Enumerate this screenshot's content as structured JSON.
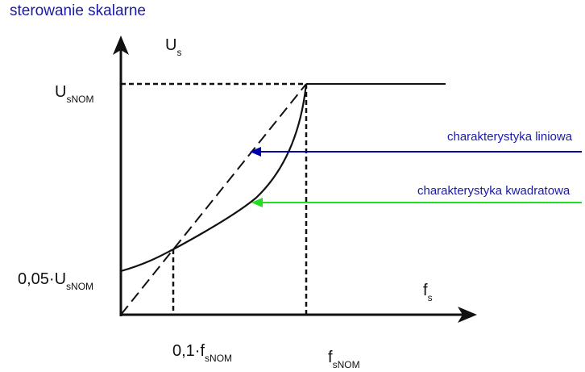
{
  "title": "sterowanie skalarne",
  "axes": {
    "y_label": "U",
    "y_label_sub": "s",
    "x_label": "f",
    "x_label_sub": "s"
  },
  "ticks": {
    "y_top_main": "U",
    "y_top_sub": "sNOM",
    "y_low_main": "0,05·U",
    "y_low_sub": "sNOM",
    "x_low_main": "0,1·f",
    "x_low_sub": "sNOM",
    "x_nom_main": "f",
    "x_nom_sub": "sNOM"
  },
  "annotations": {
    "linear": "charakterystyka liniowa",
    "quadratic": "charakterystyka kwadratowa"
  },
  "colors": {
    "title": "#1a1aa6",
    "linear_arrow": "#0000aa",
    "quadratic_arrow": "#22dd22",
    "ink": "#111111"
  }
}
